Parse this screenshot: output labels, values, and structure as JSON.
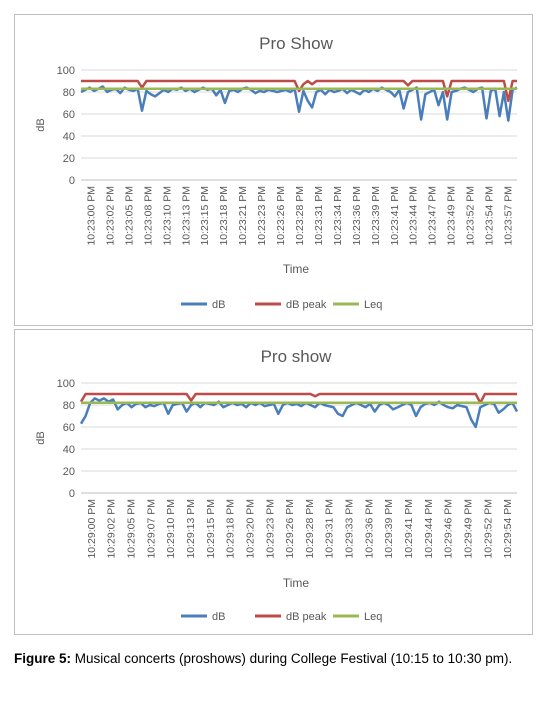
{
  "colors": {
    "dB": "#4a7ebb",
    "dB peak": "#be4b48",
    "Leq": "#98b954",
    "grid": "#d9d9d9",
    "axis": "#bfbfbf",
    "text": "#595959"
  },
  "caption": {
    "label": "Figure 5:",
    "text": " Musical concerts (proshows) during College Festival (10:15 to 10:30 pm)."
  },
  "chart_data": [
    {
      "type": "line",
      "title": "Pro Show",
      "xlabel": "Time",
      "ylabel": "dB",
      "ylim": [
        0,
        100
      ],
      "yticks": [
        0,
        20,
        40,
        60,
        80,
        100
      ],
      "grid": true,
      "legend": "bottom",
      "tick_labels": [
        "10:23:00 PM",
        "10:23:02 PM",
        "10:23:05 PM",
        "10:23:08 PM",
        "10:23:10 PM",
        "10:23:13 PM",
        "10:23:15 PM",
        "10:23:18 PM",
        "10:23:21 PM",
        "10:23:23 PM",
        "10:23:26 PM",
        "10:23:28 PM",
        "10:23:31 PM",
        "10:23:34 PM",
        "10:23:36 PM",
        "10:23:39 PM",
        "10:23:41 PM",
        "10:23:44 PM",
        "10:23:47 PM",
        "10:23:49 PM",
        "10:23:52 PM",
        "10:23:54 PM",
        "10:23:57 PM"
      ],
      "series": [
        {
          "name": "dB",
          "values": [
            80,
            82,
            84,
            81,
            83,
            85,
            80,
            82,
            83,
            79,
            84,
            82,
            81,
            83,
            63,
            81,
            78,
            76,
            79,
            82,
            80,
            83,
            82,
            84,
            81,
            83,
            80,
            82,
            84,
            82,
            83,
            77,
            82,
            70,
            81,
            82,
            80,
            83,
            84,
            82,
            79,
            81,
            80,
            82,
            81,
            80,
            81,
            82,
            80,
            83,
            62,
            81,
            72,
            66,
            80,
            82,
            78,
            82,
            80,
            81,
            83,
            79,
            82,
            80,
            78,
            82,
            80,
            83,
            81,
            84,
            82,
            80,
            76,
            82,
            65,
            80,
            82,
            84,
            55,
            78,
            80,
            82,
            68,
            80,
            55,
            80,
            81,
            83,
            84,
            82,
            80,
            83,
            84,
            56,
            81,
            83,
            58,
            80,
            54,
            82,
            84
          ]
        },
        {
          "name": "dB peak",
          "values": [
            90,
            90,
            90,
            90,
            90,
            90,
            90,
            90,
            90,
            90,
            90,
            90,
            90,
            90,
            84,
            90,
            90,
            90,
            90,
            90,
            90,
            90,
            90,
            90,
            90,
            90,
            90,
            90,
            90,
            90,
            90,
            90,
            90,
            90,
            90,
            90,
            90,
            90,
            90,
            90,
            90,
            90,
            90,
            90,
            90,
            90,
            90,
            90,
            90,
            90,
            81,
            87,
            90,
            87,
            90,
            90,
            90,
            90,
            90,
            90,
            90,
            90,
            90,
            90,
            90,
            90,
            90,
            90,
            90,
            90,
            90,
            90,
            90,
            90,
            90,
            86,
            90,
            90,
            90,
            90,
            90,
            90,
            90,
            90,
            76,
            90,
            90,
            90,
            90,
            90,
            90,
            90,
            90,
            90,
            90,
            90,
            90,
            90,
            72,
            90,
            90
          ]
        },
        {
          "name": "Leq",
          "values": [
            83,
            83
          ]
        }
      ]
    },
    {
      "type": "line",
      "title": "Pro show",
      "xlabel": "Time",
      "ylabel": "dB",
      "ylim": [
        0,
        100
      ],
      "yticks": [
        0,
        20,
        40,
        60,
        80,
        100
      ],
      "grid": true,
      "legend": "bottom",
      "tick_labels": [
        "10:29:00 PM",
        "10:29:02 PM",
        "10:29:05 PM",
        "10:29:07 PM",
        "10:29:10 PM",
        "10:29:13 PM",
        "10:29:15 PM",
        "10:29:18 PM",
        "10:29:20 PM",
        "10:29:23 PM",
        "10:29:26 PM",
        "10:29:28 PM",
        "10:29:31 PM",
        "10:29:33 PM",
        "10:29:36 PM",
        "10:29:39 PM",
        "10:29:41 PM",
        "10:29:44 PM",
        "10:29:46 PM",
        "10:29:49 PM",
        "10:29:52 PM",
        "10:29:54 PM"
      ],
      "series": [
        {
          "name": "dB",
          "values": [
            63,
            70,
            82,
            86,
            84,
            86,
            83,
            85,
            76,
            80,
            82,
            78,
            81,
            82,
            78,
            80,
            79,
            81,
            82,
            72,
            80,
            81,
            82,
            74,
            80,
            82,
            78,
            82,
            81,
            80,
            83,
            78,
            80,
            82,
            80,
            81,
            78,
            82,
            80,
            82,
            79,
            80,
            81,
            72,
            80,
            82,
            80,
            81,
            79,
            82,
            80,
            78,
            82,
            80,
            79,
            78,
            72,
            70,
            78,
            80,
            82,
            80,
            78,
            81,
            74,
            80,
            82,
            80,
            76,
            78,
            80,
            82,
            80,
            70,
            78,
            81,
            82,
            80,
            83,
            80,
            78,
            77,
            80,
            79,
            78,
            67,
            60,
            78,
            80,
            82,
            81,
            73,
            76,
            80,
            82,
            74
          ]
        },
        {
          "name": "dB peak",
          "values": [
            83,
            90,
            90,
            90,
            90,
            90,
            90,
            90,
            90,
            90,
            90,
            90,
            90,
            90,
            90,
            90,
            90,
            90,
            90,
            90,
            90,
            90,
            90,
            90,
            84,
            90,
            90,
            90,
            90,
            90,
            90,
            90,
            90,
            90,
            90,
            90,
            90,
            90,
            90,
            90,
            90,
            90,
            90,
            90,
            90,
            90,
            90,
            90,
            90,
            90,
            90,
            88,
            90,
            90,
            90,
            90,
            90,
            90,
            90,
            90,
            90,
            90,
            90,
            90,
            90,
            90,
            90,
            90,
            90,
            90,
            90,
            90,
            90,
            90,
            90,
            90,
            90,
            90,
            90,
            90,
            90,
            90,
            90,
            90,
            90,
            90,
            90,
            82,
            90,
            90,
            90,
            90,
            90,
            90,
            90,
            90
          ]
        },
        {
          "name": "Leq",
          "values": [
            82,
            82
          ]
        }
      ]
    }
  ]
}
